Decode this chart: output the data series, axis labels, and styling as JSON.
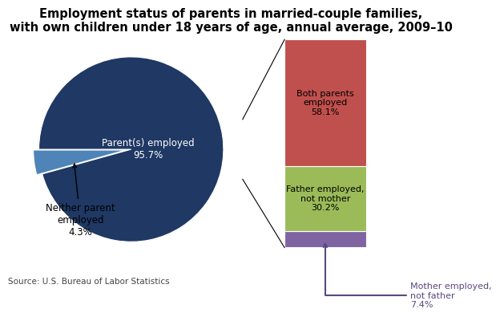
{
  "title": "Employment status of parents in married-couple families,\nwith own children under 18 years of age, annual average, 2009–10",
  "title_fontsize": 10.5,
  "pie_values": [
    95.7,
    4.3
  ],
  "pie_colors": [
    "#1f3864",
    "#4e84b8"
  ],
  "pie_label_employed": "Parent(s) employed\n95.7%",
  "pie_label_neither": "Neither parent\nemployed\n4.3%",
  "bar_labels": [
    "Both parents\nemployed\n58.1%",
    "Father employed,\nnot mother\n30.2%",
    "Mother employed,\nnot father\n7.4%"
  ],
  "bar_values": [
    58.1,
    30.2,
    7.4
  ],
  "bar_colors": [
    "#c0504d",
    "#9bbb59",
    "#8064a2"
  ],
  "source": "Source: U.S. Bureau of Labor Statistics",
  "background": "#ffffff"
}
